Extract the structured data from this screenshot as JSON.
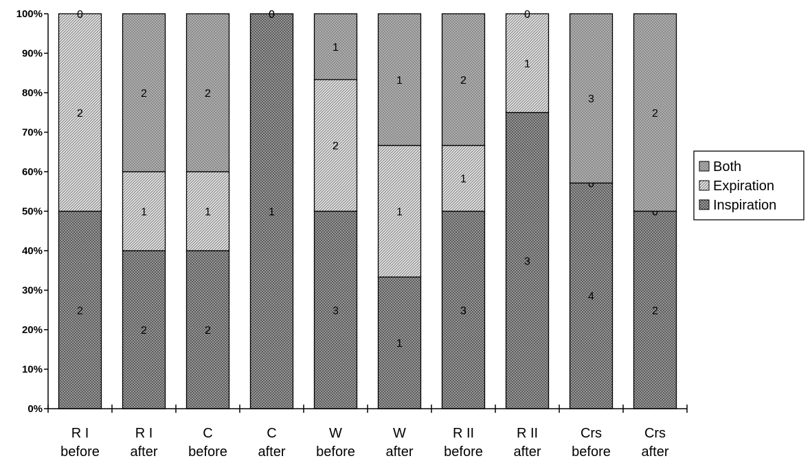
{
  "chart_data": {
    "type": "bar",
    "stacked": true,
    "normalized": true,
    "title": "",
    "xlabel": "",
    "ylabel": "",
    "ylim": [
      0,
      100
    ],
    "yticks": [
      "0%",
      "10%",
      "20%",
      "30%",
      "40%",
      "50%",
      "60%",
      "70%",
      "80%",
      "90%",
      "100%"
    ],
    "categories": [
      [
        "R I",
        "before"
      ],
      [
        "R I",
        "after"
      ],
      [
        "C",
        "before"
      ],
      [
        "C",
        "after"
      ],
      [
        "W",
        "before"
      ],
      [
        "W",
        "after"
      ],
      [
        "R II",
        "before"
      ],
      [
        "R II",
        "after"
      ],
      [
        "Crs",
        "before"
      ],
      [
        "Crs",
        "after"
      ]
    ],
    "series": [
      {
        "name": "Inspiration",
        "values": [
          2,
          2,
          2,
          1,
          3,
          1,
          3,
          3,
          4,
          2
        ],
        "color": "#555555"
      },
      {
        "name": "Expiration",
        "values": [
          2,
          1,
          1,
          0,
          2,
          1,
          1,
          1,
          0,
          0
        ],
        "color": "#d6d6d6"
      },
      {
        "name": "Both",
        "values": [
          0,
          2,
          2,
          0,
          1,
          1,
          2,
          0,
          3,
          2
        ],
        "color": "#8a8a8a"
      }
    ],
    "legend": {
      "position": "right",
      "order": [
        "Both",
        "Expiration",
        "Inspiration"
      ]
    },
    "grid": false
  }
}
